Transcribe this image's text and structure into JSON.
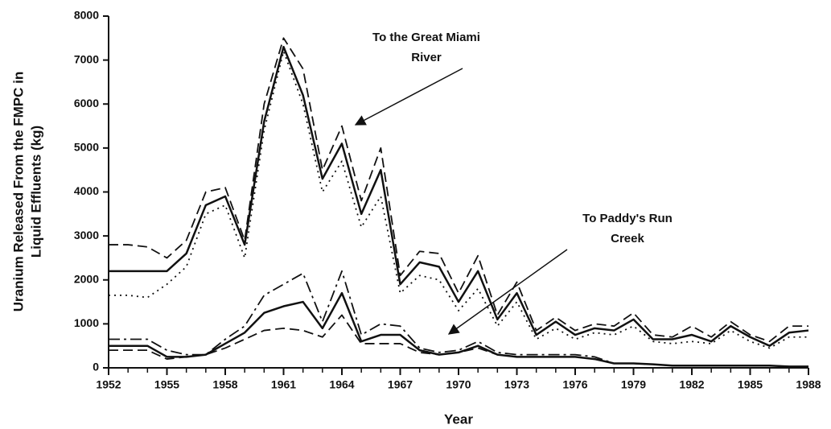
{
  "chart_data": {
    "type": "line",
    "x": [
      1952,
      1953,
      1954,
      1955,
      1956,
      1957,
      1958,
      1959,
      1960,
      1961,
      1962,
      1963,
      1964,
      1965,
      1966,
      1967,
      1968,
      1969,
      1970,
      1971,
      1972,
      1973,
      1974,
      1975,
      1976,
      1977,
      1978,
      1979,
      1980,
      1981,
      1982,
      1983,
      1984,
      1985,
      1986,
      1987,
      1988
    ],
    "xlabel": "Year",
    "ylabel": [
      "Uranium Released From the FMPC in",
      "Liquid Effluents (kg)"
    ],
    "xlim": [
      1952,
      1988
    ],
    "xticks": [
      1952,
      1955,
      1958,
      1961,
      1964,
      1967,
      1970,
      1973,
      1976,
      1979,
      1982,
      1985,
      1988
    ],
    "ylim": [
      0,
      8000
    ],
    "yticks": [
      0,
      1000,
      2000,
      3000,
      4000,
      5000,
      6000,
      7000,
      8000
    ],
    "series": [
      {
        "color": "#111111",
        "style": "solid",
        "values": [
          2200,
          2200,
          2200,
          2200,
          2600,
          3700,
          3900,
          2800,
          5600,
          7300,
          6200,
          4300,
          5100,
          3500,
          4500,
          1900,
          2400,
          2300,
          1500,
          2200,
          1100,
          1700,
          750,
          1050,
          750,
          900,
          850,
          1100,
          650,
          650,
          750,
          600,
          950,
          700,
          500,
          800,
          850
        ]
      },
      {
        "color": "#111111",
        "style": "dashed",
        "values": [
          2800,
          2800,
          2750,
          2500,
          2900,
          4000,
          4100,
          2900,
          6000,
          7500,
          6800,
          4500,
          5500,
          3800,
          5000,
          2100,
          2650,
          2600,
          1700,
          2550,
          1200,
          1950,
          850,
          1150,
          850,
          1000,
          950,
          1250,
          750,
          700,
          950,
          700,
          1050,
          750,
          600,
          950,
          950
        ]
      },
      {
        "color": "#111111",
        "style": "dotted",
        "values": [
          1650,
          1650,
          1600,
          1900,
          2300,
          3500,
          3700,
          2500,
          5400,
          7200,
          6000,
          4000,
          4700,
          3200,
          3900,
          1700,
          2100,
          2000,
          1300,
          1800,
          950,
          1500,
          650,
          900,
          650,
          800,
          750,
          950,
          600,
          550,
          600,
          550,
          850,
          600,
          450,
          700,
          700
        ]
      },
      {
        "color": "#111111",
        "style": "solid",
        "values": [
          500,
          500,
          500,
          250,
          250,
          300,
          550,
          800,
          1250,
          1400,
          1500,
          900,
          1700,
          600,
          750,
          750,
          400,
          300,
          350,
          500,
          300,
          250,
          250,
          250,
          250,
          200,
          100,
          100,
          80,
          50,
          50,
          50,
          50,
          50,
          50,
          30,
          30
        ]
      },
      {
        "color": "#111111",
        "style": "dashdot",
        "values": [
          650,
          650,
          650,
          400,
          300,
          300,
          650,
          950,
          1650,
          1900,
          2150,
          1050,
          2200,
          750,
          1000,
          950,
          450,
          350,
          400,
          600,
          350,
          300,
          300,
          300,
          300,
          250,
          100,
          100,
          80,
          50,
          50,
          50,
          50,
          50,
          50,
          30,
          30
        ]
      },
      {
        "color": "#111111",
        "style": "dashed",
        "values": [
          400,
          400,
          400,
          200,
          250,
          300,
          450,
          650,
          850,
          900,
          850,
          700,
          1200,
          550,
          550,
          550,
          350,
          300,
          350,
          450,
          300,
          250,
          250,
          250,
          250,
          200,
          100,
          100,
          80,
          50,
          50,
          50,
          50,
          50,
          50,
          30,
          30
        ]
      }
    ],
    "annotations": [
      {
        "lines": [
          "To the Great Miami",
          "River"
        ]
      },
      {
        "lines": [
          "To Paddy's Run",
          "Creek"
        ]
      }
    ]
  }
}
